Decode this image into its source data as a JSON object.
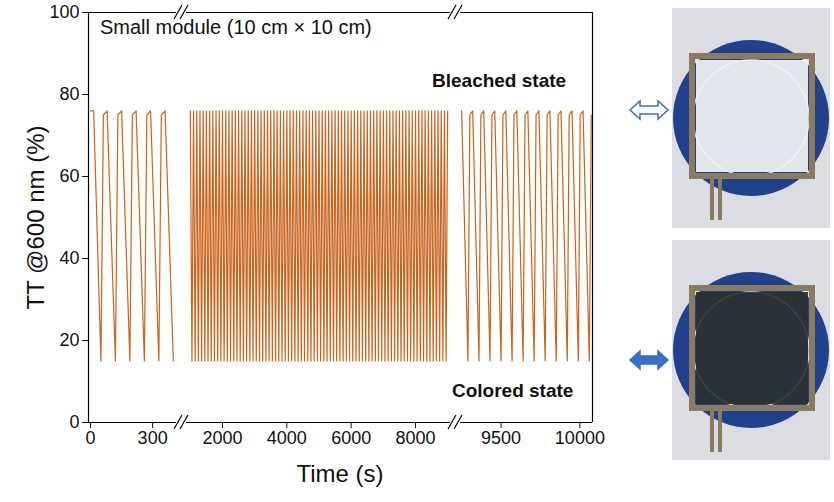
{
  "chart_data": {
    "type": "line",
    "title": "Small module (10 cm × 10 cm)",
    "x_label": "Time (s)",
    "y_label": "TT @600 nm (%)",
    "ylim": [
      0,
      100
    ],
    "yticks": [
      0,
      20,
      40,
      60,
      80,
      100
    ],
    "color": "#c8641c",
    "annotations": [
      "Bleached state",
      "Colored state"
    ],
    "panels": [
      {
        "xlim": [
          -10,
          425
        ],
        "xticks": [
          0,
          300
        ],
        "x": [
          0,
          15,
          50,
          62,
          80,
          120,
          132,
          150,
          190,
          202,
          220,
          260,
          272,
          290,
          330,
          342,
          360,
          400
        ],
        "values": [
          76,
          76,
          15,
          75,
          76,
          15,
          75,
          76,
          15,
          75,
          76,
          15,
          75,
          76,
          15,
          75,
          76,
          15
        ]
      },
      {
        "xlim": [
          850,
          9150
        ],
        "xticks": [
          2000,
          4000,
          6000,
          8000
        ],
        "x": [
          1000,
          1050,
          1100,
          1150,
          1200,
          1250,
          1300,
          1350,
          1400,
          1450,
          1500,
          1550,
          1600,
          1650,
          1700,
          1750,
          1800,
          1850,
          1900,
          1950,
          2000,
          2050,
          2100,
          2150,
          2200,
          2250,
          2300,
          2350,
          2400,
          2450,
          2500,
          2550,
          2600,
          2650,
          2700,
          2750,
          2800,
          2850,
          2900,
          2950,
          3000,
          3050,
          3100,
          3150,
          3200,
          3250,
          3300,
          3350,
          3400,
          3450,
          3500,
          3550,
          3600,
          3650,
          3700,
          3750,
          3800,
          3850,
          3900,
          3950,
          4000,
          4050,
          4100,
          4150,
          4200,
          4250,
          4300,
          4350,
          4400,
          4450,
          4500,
          4550,
          4600,
          4650,
          4700,
          4750,
          4800,
          4850,
          4900,
          4950,
          5000,
          5050,
          5100,
          5150,
          5200,
          5250,
          5300,
          5350,
          5400,
          5450,
          5500,
          5550,
          5600,
          5650,
          5700,
          5750,
          5800,
          5850,
          5900,
          5950,
          6000,
          6050,
          6100,
          6150,
          6200,
          6250,
          6300,
          6350,
          6400,
          6450,
          6500,
          6550,
          6600,
          6650,
          6700,
          6750,
          6800,
          6850,
          6900,
          6950,
          7000,
          7050,
          7100,
          7150,
          7200,
          7250,
          7300,
          7350,
          7400,
          7450,
          7500,
          7550,
          7600,
          7650,
          7700,
          7750,
          7800,
          7850,
          7900,
          7950,
          8000,
          8050,
          8100,
          8150,
          8200,
          8250,
          8300,
          8350,
          8400,
          8450,
          8500,
          8550,
          8600,
          8650,
          8700,
          8750,
          8800,
          8850,
          8900,
          8950,
          9000
        ],
        "values": [
          76,
          15,
          76,
          15,
          76,
          15,
          76,
          15,
          76,
          15,
          76,
          15,
          76,
          15,
          76,
          15,
          76,
          15,
          76,
          15,
          76,
          15,
          76,
          15,
          76,
          15,
          76,
          15,
          76,
          15,
          76,
          15,
          76,
          15,
          76,
          15,
          76,
          15,
          76,
          15,
          76,
          15,
          76,
          15,
          76,
          15,
          76,
          15,
          76,
          15,
          76,
          15,
          76,
          15,
          76,
          15,
          76,
          15,
          76,
          15,
          76,
          15,
          76,
          15,
          76,
          15,
          76,
          15,
          76,
          15,
          76,
          15,
          76,
          15,
          76,
          15,
          76,
          15,
          76,
          15,
          76,
          15,
          76,
          15,
          76,
          15,
          76,
          15,
          76,
          15,
          76,
          15,
          76,
          15,
          76,
          15,
          76,
          15,
          76,
          15,
          76,
          15,
          76,
          15,
          76,
          15,
          76,
          15,
          76,
          15,
          76,
          15,
          76,
          15,
          76,
          15,
          76,
          15,
          76,
          15,
          76,
          15,
          76,
          15,
          76,
          15,
          76,
          15,
          76,
          15,
          76,
          15,
          76,
          15,
          76,
          15,
          76,
          15,
          76,
          15,
          76,
          15,
          76,
          15,
          76,
          15,
          76,
          15,
          76,
          15,
          76,
          15,
          76,
          15,
          76,
          15,
          76,
          15,
          76,
          15,
          76
        ]
      },
      {
        "xlim": [
          9230,
          10080
        ],
        "xticks": [
          9500,
          10000
        ],
        "x": [
          9250,
          9290,
          9302,
          9320,
          9360,
          9372,
          9390,
          9430,
          9442,
          9460,
          9500,
          9512,
          9530,
          9570,
          9582,
          9600,
          9640,
          9652,
          9670,
          9710,
          9722,
          9740,
          9780,
          9792,
          9810,
          9850,
          9862,
          9880,
          9920,
          9932,
          9950,
          9990,
          10002,
          10020,
          10060,
          10072
        ],
        "values": [
          76,
          15,
          75,
          76,
          15,
          75,
          76,
          15,
          75,
          76,
          15,
          75,
          76,
          15,
          75,
          76,
          15,
          75,
          76,
          15,
          75,
          76,
          15,
          75,
          76,
          15,
          75,
          76,
          15,
          75,
          76,
          15,
          75,
          76,
          15,
          75
        ]
      }
    ]
  }
}
